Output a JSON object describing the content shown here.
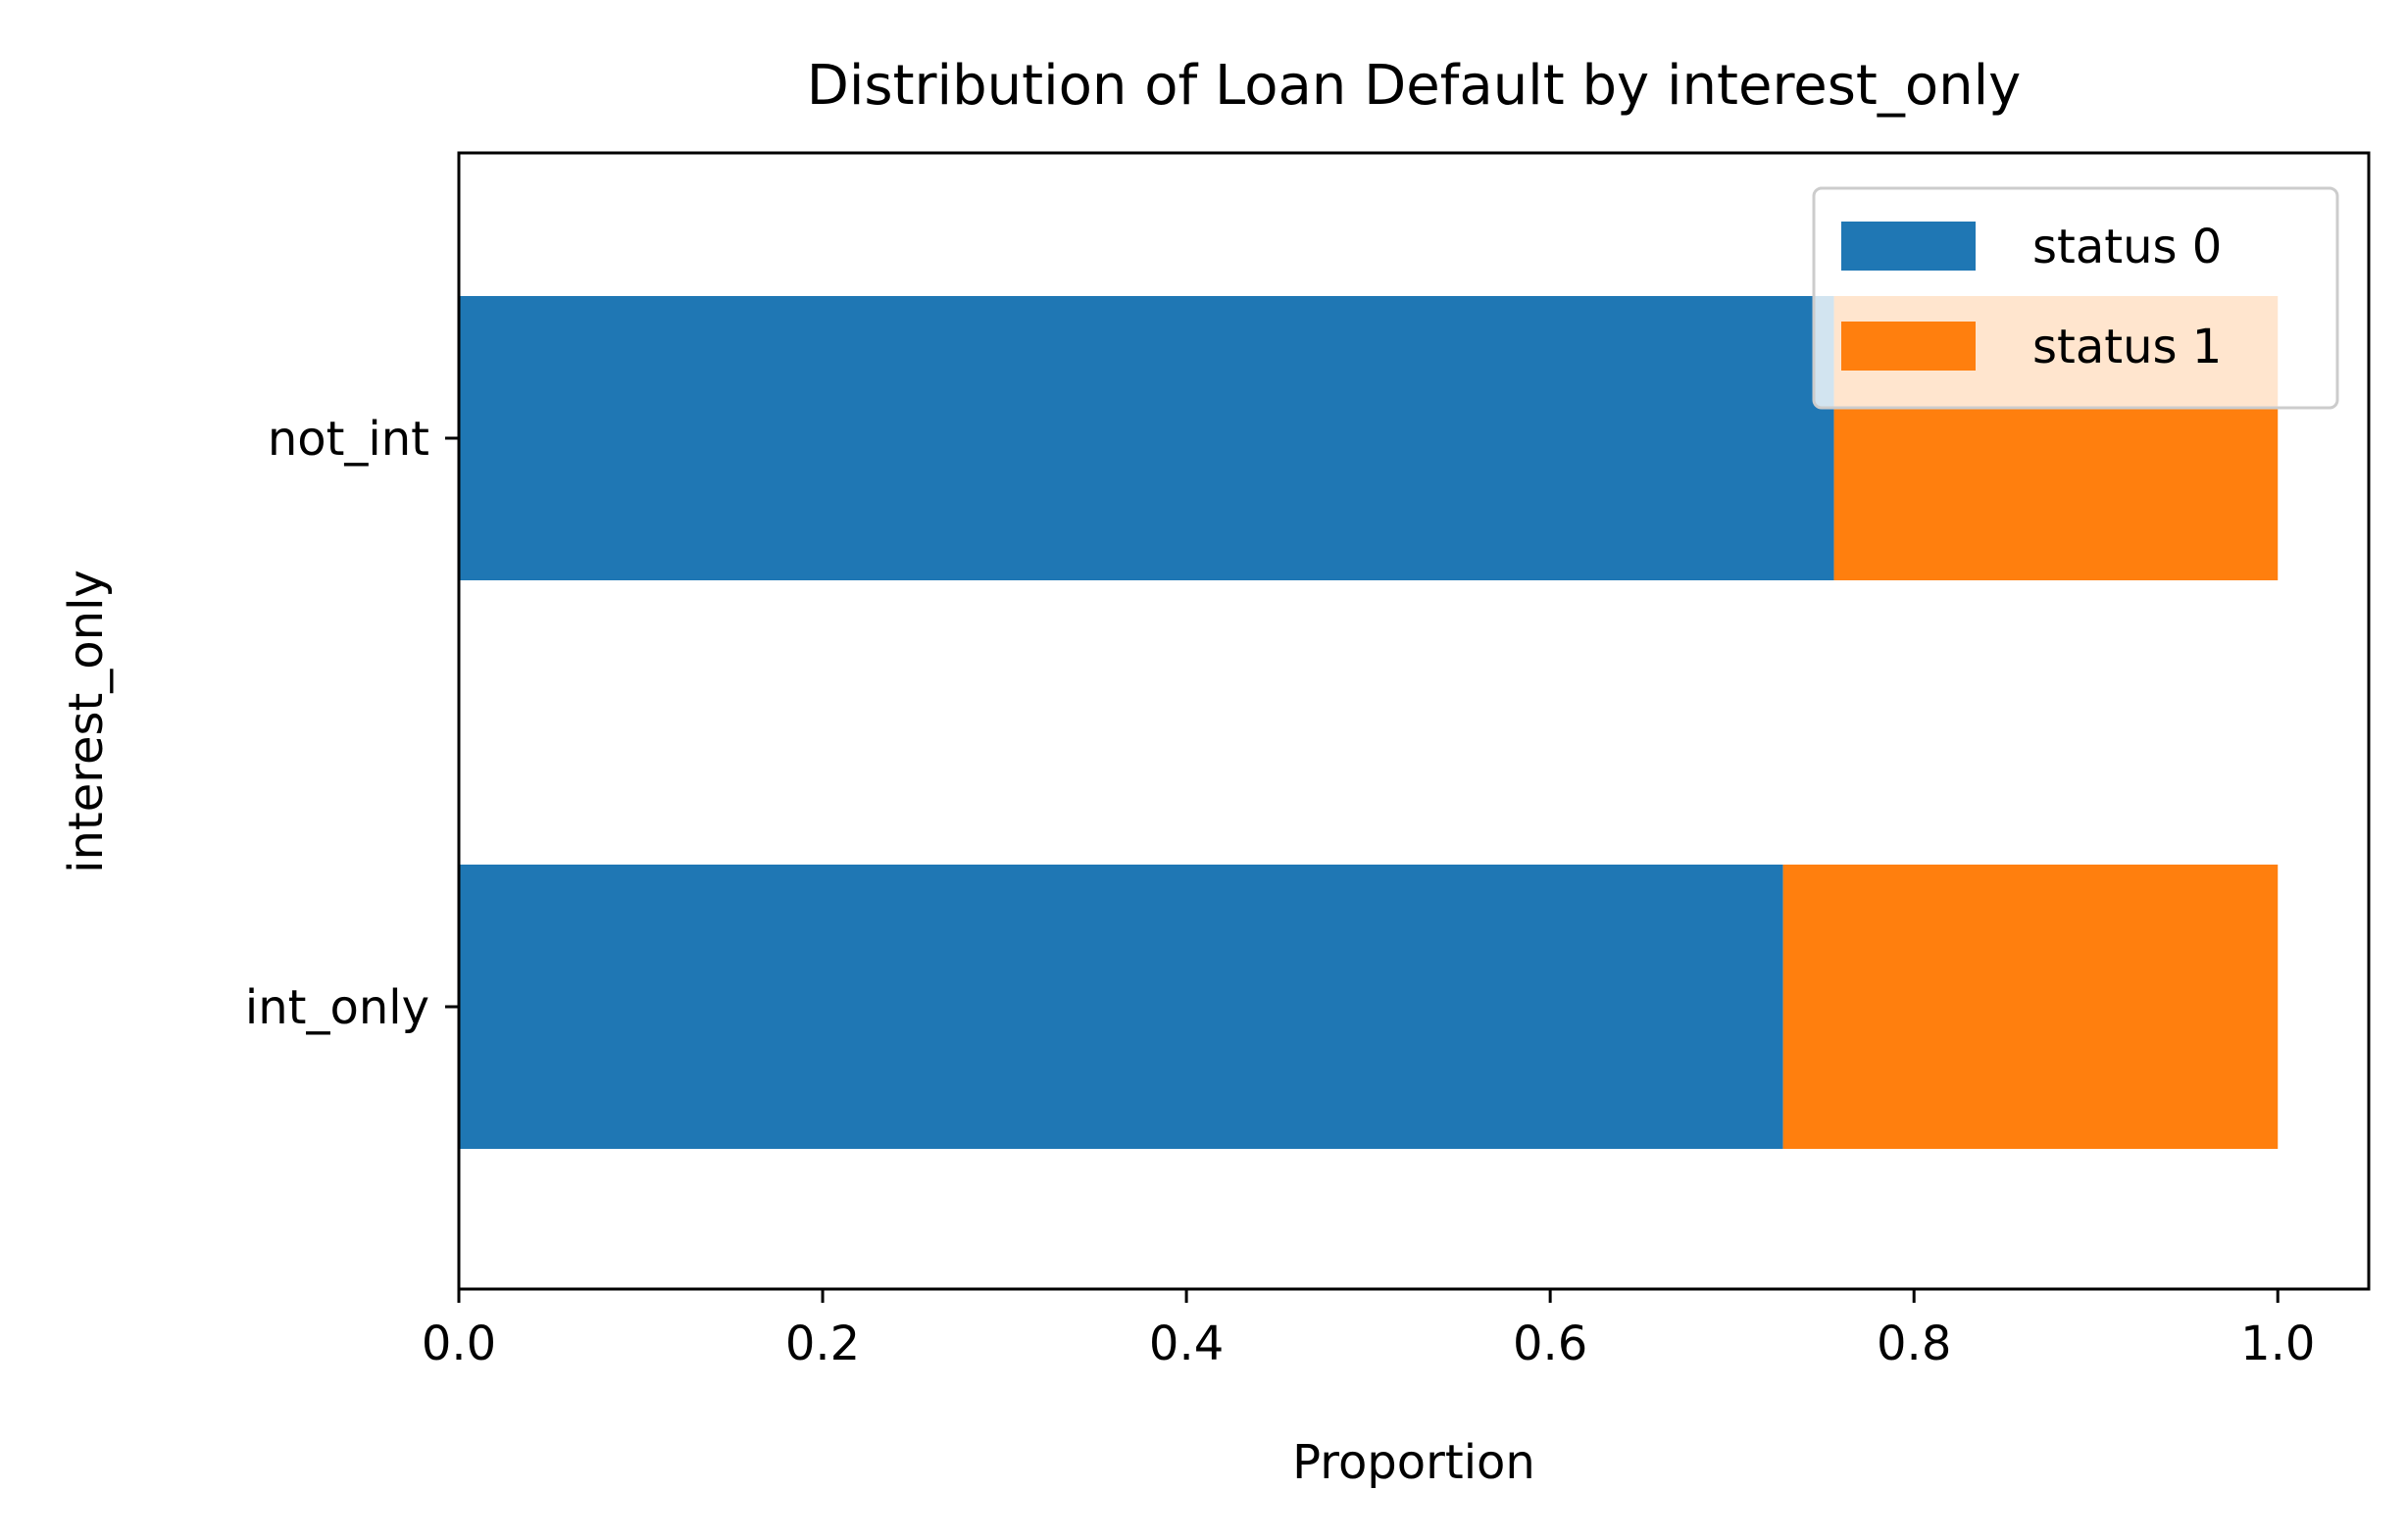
{
  "chart_data": {
    "type": "bar",
    "orientation": "horizontal",
    "stacked": true,
    "title": "Distribution of Loan Default by interest_only",
    "xlabel": "Proportion",
    "ylabel": "interest_only",
    "categories": [
      "not_int",
      "int_only"
    ],
    "series": [
      {
        "name": "status 0",
        "values": [
          0.756,
          0.728
        ],
        "color": "#1f77b4"
      },
      {
        "name": "status 1",
        "values": [
          0.244,
          0.272
        ],
        "color": "#ff7f0e"
      }
    ],
    "xlim": [
      0.0,
      1.05
    ],
    "xticks": [
      "0.0",
      "0.2",
      "0.4",
      "0.6",
      "0.8",
      "1.0"
    ],
    "grid": false,
    "legend": "upper-right"
  }
}
